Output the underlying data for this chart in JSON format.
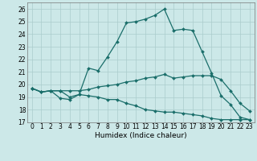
{
  "title": "",
  "xlabel": "Humidex (Indice chaleur)",
  "bg_color": "#cce8e8",
  "grid_color": "#aacccc",
  "line_color": "#1a6e6a",
  "xlim": [
    -0.5,
    23.5
  ],
  "ylim": [
    17,
    26.5
  ],
  "yticks": [
    17,
    18,
    19,
    20,
    21,
    22,
    23,
    24,
    25,
    26
  ],
  "xticks": [
    0,
    1,
    2,
    3,
    4,
    5,
    6,
    7,
    8,
    9,
    10,
    11,
    12,
    13,
    14,
    15,
    16,
    17,
    18,
    19,
    20,
    21,
    22,
    23
  ],
  "line1_x": [
    0,
    1,
    2,
    3,
    4,
    5,
    6,
    7,
    8,
    9,
    10,
    11,
    12,
    13,
    14,
    15,
    16,
    17,
    18,
    19,
    20,
    21,
    22,
    23
  ],
  "line1_y": [
    19.7,
    19.4,
    19.5,
    18.9,
    18.8,
    19.2,
    21.3,
    21.1,
    22.2,
    23.4,
    24.9,
    25.0,
    25.2,
    25.5,
    26.0,
    24.3,
    24.4,
    24.3,
    22.6,
    20.9,
    19.1,
    18.4,
    17.4,
    17.2
  ],
  "line2_x": [
    0,
    1,
    2,
    3,
    4,
    5,
    6,
    7,
    8,
    9,
    10,
    11,
    12,
    13,
    14,
    15,
    16,
    17,
    18,
    19,
    20,
    21,
    22,
    23
  ],
  "line2_y": [
    19.7,
    19.4,
    19.5,
    19.5,
    19.5,
    19.5,
    19.6,
    19.8,
    19.9,
    20.0,
    20.2,
    20.3,
    20.5,
    20.6,
    20.8,
    20.5,
    20.6,
    20.7,
    20.7,
    20.7,
    20.4,
    19.5,
    18.5,
    17.9
  ],
  "line3_x": [
    0,
    1,
    2,
    3,
    4,
    5,
    6,
    7,
    8,
    9,
    10,
    11,
    12,
    13,
    14,
    15,
    16,
    17,
    18,
    19,
    20,
    21,
    22,
    23
  ],
  "line3_y": [
    19.7,
    19.4,
    19.5,
    19.5,
    19.0,
    19.2,
    19.1,
    19.0,
    18.8,
    18.8,
    18.5,
    18.3,
    18.0,
    17.9,
    17.8,
    17.8,
    17.7,
    17.6,
    17.5,
    17.3,
    17.2,
    17.2,
    17.2,
    17.2
  ],
  "marker_size": 2.0,
  "line_width": 0.9,
  "tick_fontsize": 5.5,
  "xlabel_fontsize": 6.5,
  "figsize": [
    3.2,
    2.0
  ],
  "dpi": 100
}
